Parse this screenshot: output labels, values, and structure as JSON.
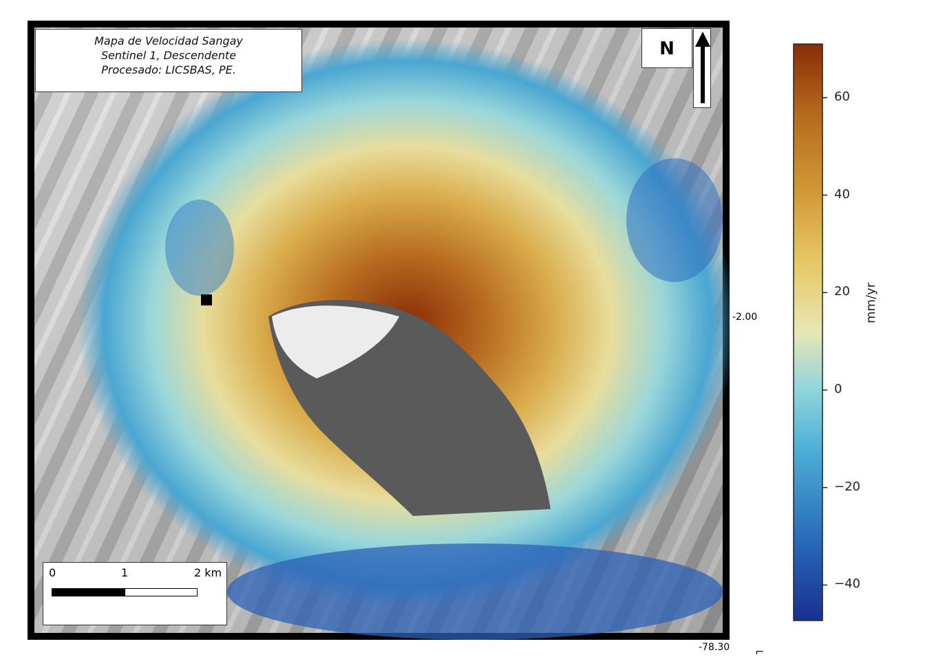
{
  "map": {
    "title_lines": [
      "Mapa de Velocidad Sangay",
      "Sentinel 1, Descendente",
      "Procesado: LICSBAS, PE."
    ],
    "north_label": "N",
    "scale_labels": [
      "0",
      "1",
      "2 km"
    ],
    "lat_label": "-2.00",
    "lon_label": "-78.30",
    "corner_mark": "⌐"
  },
  "colorbar": {
    "label": "mm/yr",
    "ticks": [
      "60",
      "40",
      "20",
      "0",
      "−20",
      "−40"
    ],
    "range": [
      -47,
      71
    ],
    "colors": [
      "#18308f",
      "#2a6fba",
      "#4fb0d6",
      "#8fd5dc",
      "#e8e6b4",
      "#e6c865",
      "#cf9733",
      "#b56a1c",
      "#8a2c06"
    ]
  }
}
